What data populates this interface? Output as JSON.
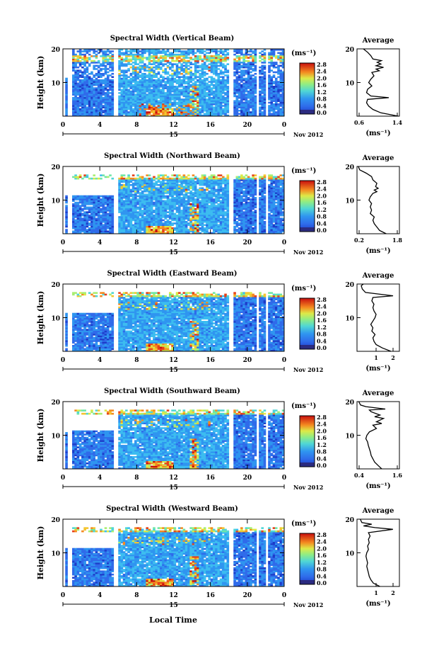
{
  "figure": {
    "xlabel": "Local Time",
    "date_label": "Nov 2012",
    "day_label": "15",
    "colorbar_unit": "(ms⁻¹)",
    "average_title": "Average",
    "average_unit": "(ms⁻¹)",
    "ylabel": "Height (km)"
  },
  "colormap": [
    "#2b2b80",
    "#1c3cc8",
    "#2f6bea",
    "#2f95f0",
    "#3cbcf0",
    "#4fd6d6",
    "#6fe6a6",
    "#a8ee72",
    "#dcea48",
    "#f4c530",
    "#f48a20",
    "#e6401a",
    "#c80e0e"
  ],
  "chart_data": [
    {
      "type": "heatmap",
      "title": "Spectral Width (Vertical Beam)",
      "xlim": [
        0,
        24
      ],
      "xticks": [
        "0",
        "4",
        "8",
        "12",
        "16",
        "20",
        "0"
      ],
      "ylim": [
        0,
        20
      ],
      "yticks": [
        "20",
        "10"
      ],
      "colorbar": {
        "range": [
          0,
          2.8
        ],
        "ticks": [
          "0.0",
          "0.4",
          "0.8",
          "1.2",
          "1.6",
          "2.0",
          "2.4",
          "2.8"
        ]
      },
      "average": {
        "xlim": [
          0.6,
          1.4
        ],
        "xticks": [
          "0.6",
          "1.4"
        ],
        "yticks": [
          "20",
          "10"
        ],
        "profile": [
          [
            1.38,
            0
          ],
          [
            1.05,
            1
          ],
          [
            0.9,
            2
          ],
          [
            0.82,
            3
          ],
          [
            0.78,
            4
          ],
          [
            0.8,
            5
          ],
          [
            1.2,
            5.5
          ],
          [
            0.86,
            6
          ],
          [
            0.78,
            7
          ],
          [
            0.8,
            8
          ],
          [
            0.88,
            9
          ],
          [
            0.82,
            10
          ],
          [
            0.86,
            11
          ],
          [
            0.92,
            12
          ],
          [
            0.88,
            13
          ],
          [
            1.02,
            13.5
          ],
          [
            0.96,
            14
          ],
          [
            1.1,
            14.5
          ],
          [
            0.96,
            15
          ],
          [
            1.05,
            15.5
          ],
          [
            0.98,
            16
          ],
          [
            1.06,
            16.5
          ],
          [
            0.9,
            17
          ],
          [
            0.86,
            18
          ],
          [
            0.8,
            19
          ],
          [
            0.72,
            20
          ]
        ]
      }
    },
    {
      "type": "heatmap",
      "title": "Spectral Width (Northward Beam)",
      "xlim": [
        0,
        24
      ],
      "xticks": [
        "0",
        "4",
        "8",
        "12",
        "16",
        "20",
        "0"
      ],
      "ylim": [
        0,
        20
      ],
      "yticks": [
        "20",
        "10"
      ],
      "colorbar": {
        "range": [
          0,
          2.8
        ],
        "ticks": [
          "0.0",
          "0.4",
          "0.8",
          "1.2",
          "1.6",
          "2.0",
          "2.4",
          "2.8"
        ]
      },
      "average": {
        "xlim": [
          0.2,
          1.8
        ],
        "xticks": [
          "0.2",
          "1.8"
        ],
        "yticks": [
          "20",
          "10"
        ],
        "profile": [
          [
            1.3,
            0
          ],
          [
            1.05,
            1
          ],
          [
            0.95,
            2
          ],
          [
            0.85,
            3
          ],
          [
            0.8,
            4
          ],
          [
            0.85,
            5
          ],
          [
            0.7,
            6
          ],
          [
            0.75,
            7
          ],
          [
            0.7,
            8
          ],
          [
            0.75,
            9
          ],
          [
            0.65,
            10
          ],
          [
            0.7,
            11
          ],
          [
            0.8,
            12
          ],
          [
            0.95,
            12.5
          ],
          [
            0.85,
            13
          ],
          [
            1.0,
            13.5
          ],
          [
            0.9,
            14
          ],
          [
            0.95,
            15
          ],
          [
            0.8,
            16
          ],
          [
            0.75,
            17
          ],
          [
            0.55,
            18
          ],
          [
            0.3,
            19
          ],
          [
            0.25,
            20
          ]
        ]
      }
    },
    {
      "type": "heatmap",
      "title": "Spectral Width (Eastward Beam)",
      "xlim": [
        0,
        24
      ],
      "xticks": [
        "0",
        "4",
        "8",
        "12",
        "16",
        "20",
        "0"
      ],
      "ylim": [
        0,
        20
      ],
      "yticks": [
        "20",
        "10"
      ],
      "colorbar": {
        "range": [
          0,
          2.8
        ],
        "ticks": [
          "0.0",
          "0.4",
          "0.8",
          "1.2",
          "1.6",
          "2.0",
          "2.4",
          "2.8"
        ]
      },
      "average": {
        "xlim": [
          0.2,
          2.2
        ],
        "xticks": [
          "1",
          "2"
        ],
        "yticks": [
          "20",
          "10"
        ],
        "profile": [
          [
            1.8,
            0
          ],
          [
            1.4,
            1
          ],
          [
            1.1,
            2
          ],
          [
            1.0,
            3
          ],
          [
            0.95,
            4
          ],
          [
            1.05,
            5
          ],
          [
            0.9,
            6
          ],
          [
            0.95,
            7
          ],
          [
            0.85,
            8
          ],
          [
            0.95,
            9
          ],
          [
            1.05,
            10
          ],
          [
            1.1,
            11
          ],
          [
            1.0,
            12
          ],
          [
            0.95,
            13
          ],
          [
            1.0,
            14
          ],
          [
            0.9,
            15
          ],
          [
            0.95,
            16
          ],
          [
            1.9,
            16.5
          ],
          [
            0.6,
            17.5
          ],
          [
            0.45,
            18.5
          ],
          [
            0.4,
            19.5
          ],
          [
            0.5,
            20
          ]
        ]
      }
    },
    {
      "type": "heatmap",
      "title": "Spectral Width (Southward Beam)",
      "xlim": [
        0,
        24
      ],
      "xticks": [
        "0",
        "4",
        "8",
        "12",
        "16",
        "20",
        "0"
      ],
      "ylim": [
        0,
        20
      ],
      "yticks": [
        "20",
        "10"
      ],
      "colorbar": {
        "range": [
          0,
          2.8
        ],
        "ticks": [
          "0.0",
          "0.4",
          "0.8",
          "1.2",
          "1.6",
          "2.0",
          "2.4",
          "2.8"
        ]
      },
      "average": {
        "xlim": [
          0.4,
          1.6
        ],
        "xticks": [
          "0.4",
          "1.6"
        ],
        "yticks": [
          "20",
          "10"
        ],
        "profile": [
          [
            1.1,
            0
          ],
          [
            1.0,
            1
          ],
          [
            0.9,
            2
          ],
          [
            0.85,
            3
          ],
          [
            0.8,
            4
          ],
          [
            0.78,
            5
          ],
          [
            0.75,
            6
          ],
          [
            0.72,
            7
          ],
          [
            0.7,
            8
          ],
          [
            0.65,
            9
          ],
          [
            0.68,
            10
          ],
          [
            0.75,
            11
          ],
          [
            0.95,
            12
          ],
          [
            0.85,
            13
          ],
          [
            1.1,
            13.5
          ],
          [
            0.95,
            14
          ],
          [
            1.15,
            15
          ],
          [
            0.9,
            15.5
          ],
          [
            1.05,
            16
          ],
          [
            0.8,
            17
          ],
          [
            0.75,
            17.5
          ],
          [
            1.2,
            17.8
          ],
          [
            0.65,
            18.5
          ],
          [
            0.5,
            19
          ],
          [
            0.45,
            20
          ]
        ]
      }
    },
    {
      "type": "heatmap",
      "title": "Spectral Width (Westward Beam)",
      "xlim": [
        0,
        24
      ],
      "xticks": [
        "0",
        "4",
        "8",
        "12",
        "16",
        "20",
        "0"
      ],
      "ylim": [
        0,
        20
      ],
      "yticks": [
        "20",
        "10"
      ],
      "colorbar": {
        "range": [
          0,
          2.8
        ],
        "ticks": [
          "0.0",
          "0.4",
          "0.8",
          "1.2",
          "1.6",
          "2.0",
          "2.4",
          "2.8"
        ]
      },
      "average": {
        "xlim": [
          0.2,
          2.8
        ],
        "xticks": [
          "1",
          "2"
        ],
        "yticks": [
          "20",
          "10"
        ],
        "profile": [
          [
            1.6,
            0
          ],
          [
            1.2,
            1
          ],
          [
            1.05,
            2
          ],
          [
            0.95,
            3
          ],
          [
            0.9,
            4
          ],
          [
            0.85,
            5
          ],
          [
            0.8,
            6
          ],
          [
            0.85,
            7
          ],
          [
            0.8,
            8
          ],
          [
            0.75,
            9
          ],
          [
            0.8,
            10
          ],
          [
            0.9,
            11
          ],
          [
            0.85,
            12
          ],
          [
            0.95,
            13
          ],
          [
            0.9,
            14
          ],
          [
            1.0,
            15
          ],
          [
            0.9,
            16
          ],
          [
            2.4,
            17
          ],
          [
            1.3,
            17.5
          ],
          [
            0.6,
            18
          ],
          [
            1.1,
            18.5
          ],
          [
            0.5,
            19
          ],
          [
            0.4,
            20
          ]
        ]
      }
    }
  ]
}
